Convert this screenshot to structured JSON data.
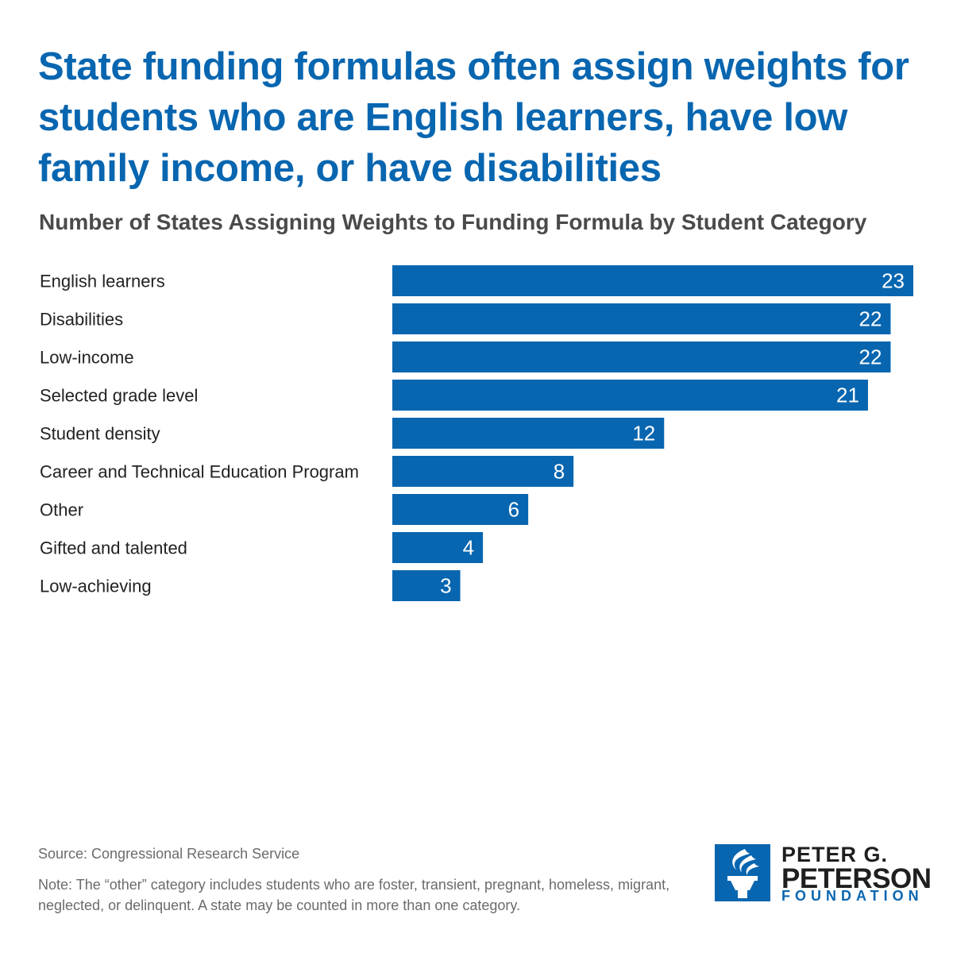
{
  "header": {
    "title": "State funding formulas often assign weights for students who are English learners, have low family income, or have disabilities",
    "subtitle": "Number of States Assigning Weights to Funding Formula by Student Category"
  },
  "chart_data": {
    "type": "bar",
    "orientation": "horizontal",
    "title": "Number of States Assigning Weights to Funding Formula by Student Category",
    "categories": [
      "English learners",
      "Disabilities",
      "Low-income",
      "Selected grade level",
      "Student density",
      "Career and Technical Education Program",
      "Other",
      "Gifted and talented",
      "Low-achieving"
    ],
    "values": [
      23,
      22,
      22,
      21,
      12,
      8,
      6,
      4,
      3
    ],
    "xlim": [
      0,
      23
    ],
    "grid": false,
    "legend": "none",
    "data_labels": "inside-end",
    "colors": {
      "bar": "#0866b0",
      "label": "#ffffff"
    }
  },
  "footer": {
    "source": "Source: Congressional Research Service",
    "note": "Note: The “other” category includes students who are foster, transient, pregnant, homeless, migrant, neglected, or delinquent. A state may be counted in more than one category."
  },
  "logo": {
    "line1": "PETER G.",
    "line2": "PETERSON",
    "line3": "FOUNDATION",
    "icon": "torch-icon",
    "color": "#0866b0"
  }
}
